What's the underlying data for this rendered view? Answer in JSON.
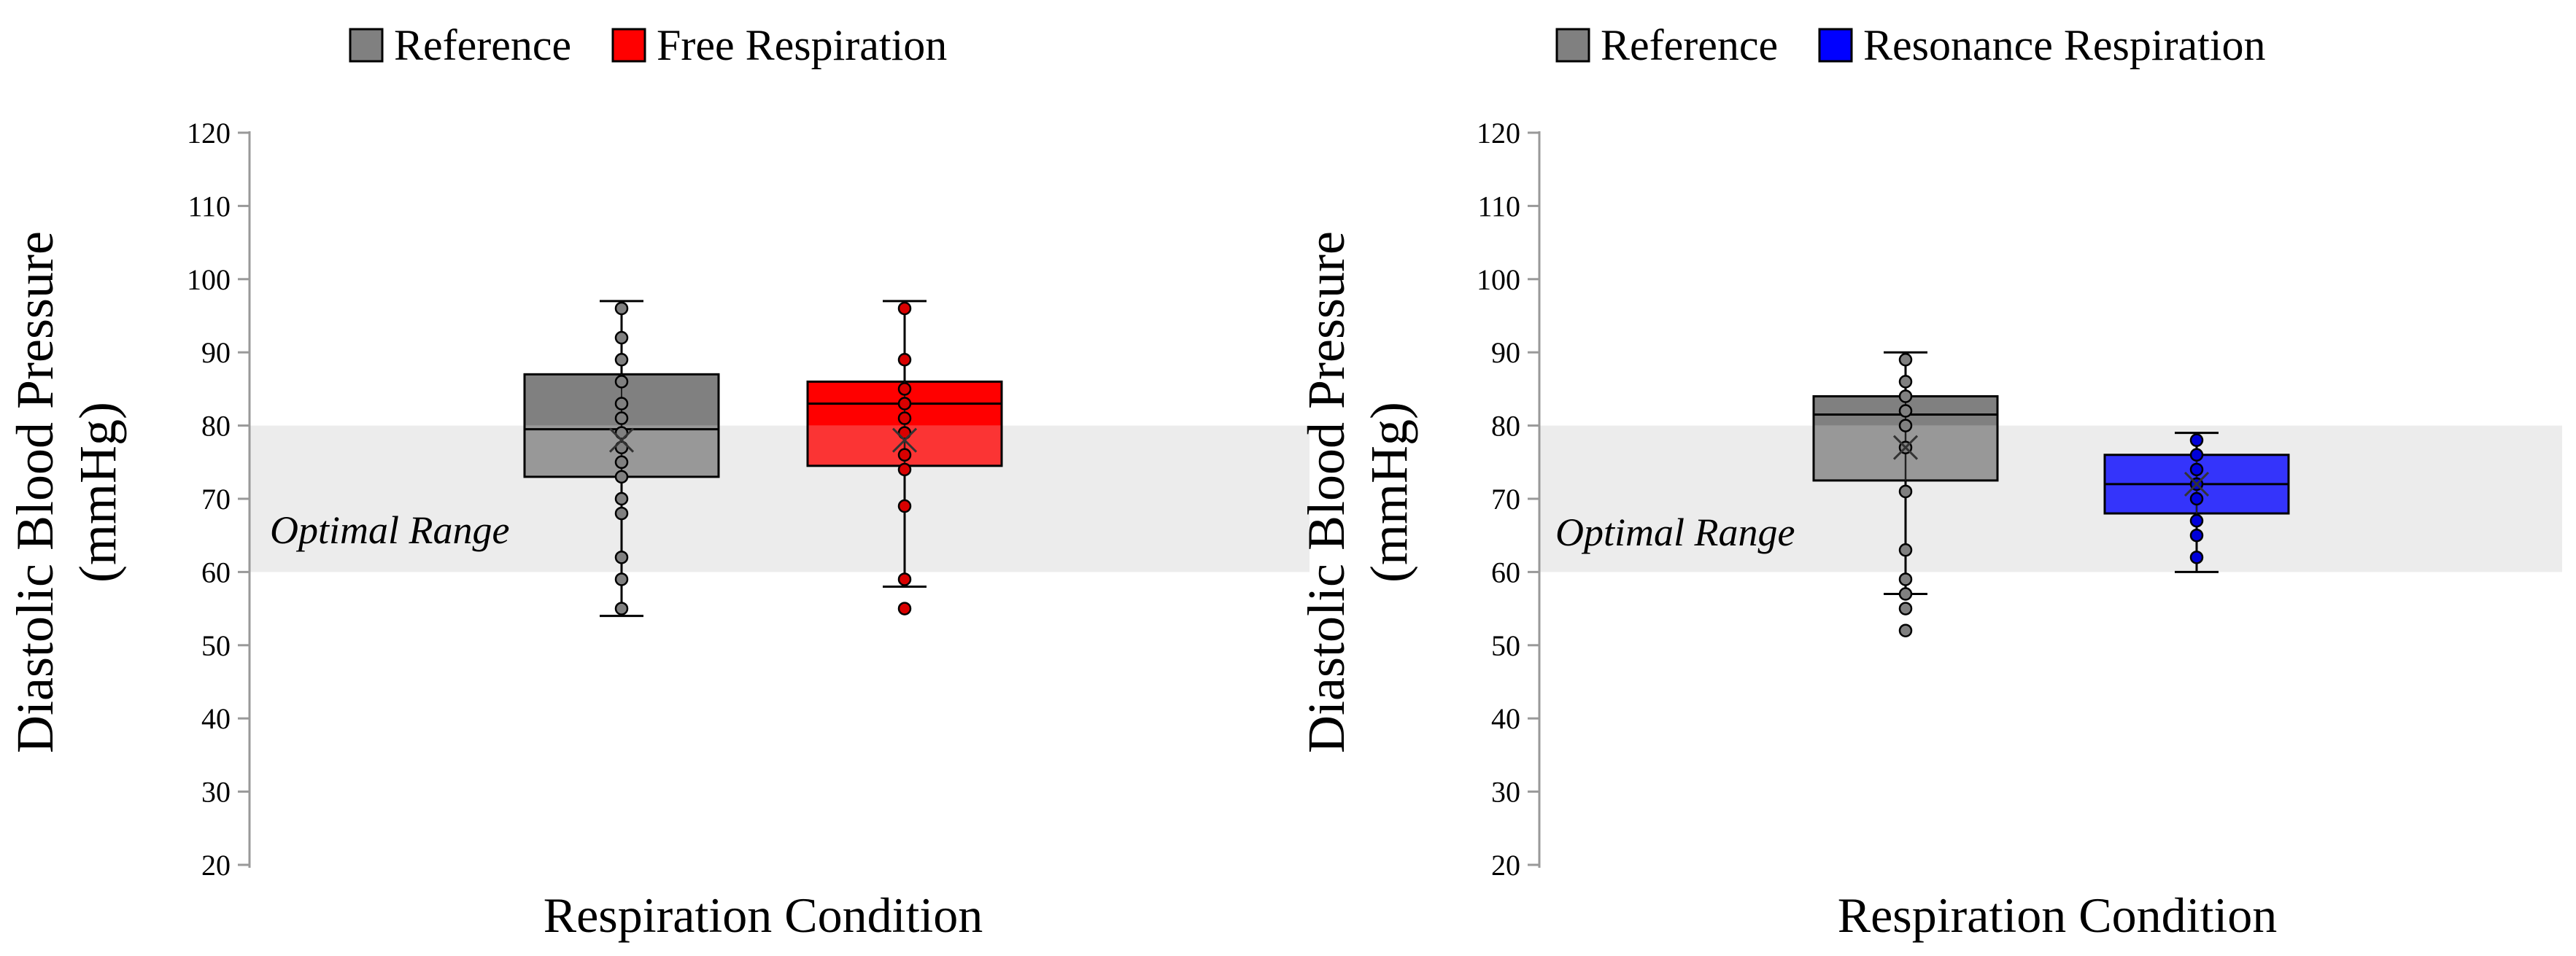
{
  "chart_data": [
    {
      "type": "box",
      "title": "",
      "ylabel_line1": "Diastolic Blood Pressure",
      "ylabel_line2": "(mmHg)",
      "xlabel": "Respiration Condition",
      "ylim": [
        20,
        120
      ],
      "yticks": [
        "120",
        "110",
        "100",
        "90",
        "80",
        "70",
        "60",
        "50",
        "40",
        "30",
        "20"
      ],
      "grid": false,
      "legend": "top",
      "band": {
        "label": "Optimal Range",
        "range": [
          60,
          80
        ],
        "color": "#ececec"
      },
      "series": [
        {
          "name": "Reference",
          "color": "#808080",
          "whisker_low": 54,
          "q1": 73,
          "median": 79.5,
          "q3": 87,
          "whisker_high": 97,
          "mean": 78,
          "points": [
            96,
            92,
            89,
            86,
            83,
            81,
            79,
            77,
            75,
            73,
            70,
            68,
            62,
            59,
            55
          ]
        },
        {
          "name": "Free Respiration",
          "color": "#ff0000",
          "whisker_low": 58,
          "q1": 74.5,
          "median": 83,
          "q3": 86,
          "whisker_high": 97,
          "mean": 78,
          "points": [
            96,
            89,
            85,
            83,
            81,
            79,
            76,
            74,
            69,
            59,
            55
          ]
        }
      ]
    },
    {
      "type": "box",
      "title": "",
      "ylabel_line1": "Diastolic Blood Pressure",
      "ylabel_line2": "(mmHg)",
      "xlabel": "Respiration Condition",
      "ylim": [
        20,
        120
      ],
      "yticks": [
        "120",
        "110",
        "100",
        "90",
        "80",
        "70",
        "60",
        "50",
        "40",
        "30",
        "20"
      ],
      "grid": false,
      "legend": "top",
      "band": {
        "label": "Optimal Range",
        "range": [
          60,
          80
        ],
        "color": "#ececec"
      },
      "series": [
        {
          "name": "Reference",
          "color": "#808080",
          "whisker_low": 57,
          "q1": 72.5,
          "median": 81.5,
          "q3": 84,
          "whisker_high": 90,
          "mean": 77,
          "points": [
            89,
            86,
            84,
            82,
            80,
            77,
            71,
            63,
            59,
            57,
            55,
            52
          ]
        },
        {
          "name": "Resonance Respiration",
          "color": "#0000ff",
          "whisker_low": 60,
          "q1": 68,
          "median": 72,
          "q3": 76,
          "whisker_high": 79,
          "mean": 72,
          "points": [
            78,
            76,
            74,
            72,
            70,
            67,
            65,
            62
          ]
        }
      ]
    }
  ]
}
